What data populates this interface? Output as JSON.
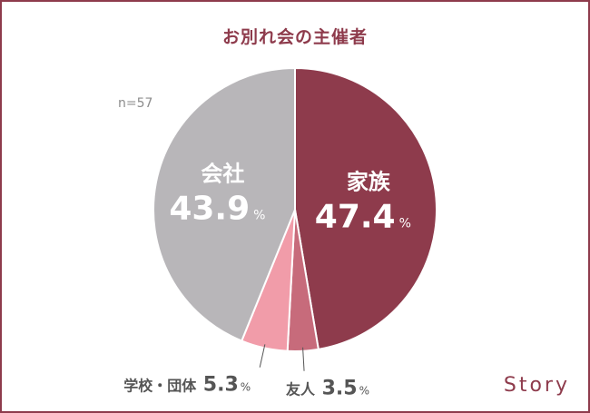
{
  "title": "お別れ会の主催者",
  "note": "n=57",
  "brand": "Story",
  "chart_data": {
    "type": "pie",
    "title": "お別れ会の主催者",
    "n": "n=57",
    "unit": "%",
    "slices": [
      {
        "name": "家族",
        "value": 47.4,
        "color": "#8e3b4c",
        "display": "inside",
        "value_label": "47.4"
      },
      {
        "name": "友人",
        "value": 3.5,
        "color": "#c76b7b",
        "display": "outside",
        "value_label": "3.5"
      },
      {
        "name": "学校・団体",
        "value": 5.3,
        "color": "#f19ca9",
        "display": "outside",
        "value_label": "5.3"
      },
      {
        "name": "会社",
        "value": 43.9,
        "color": "#b8b6b9",
        "display": "inside",
        "value_label": "43.9"
      }
    ]
  }
}
